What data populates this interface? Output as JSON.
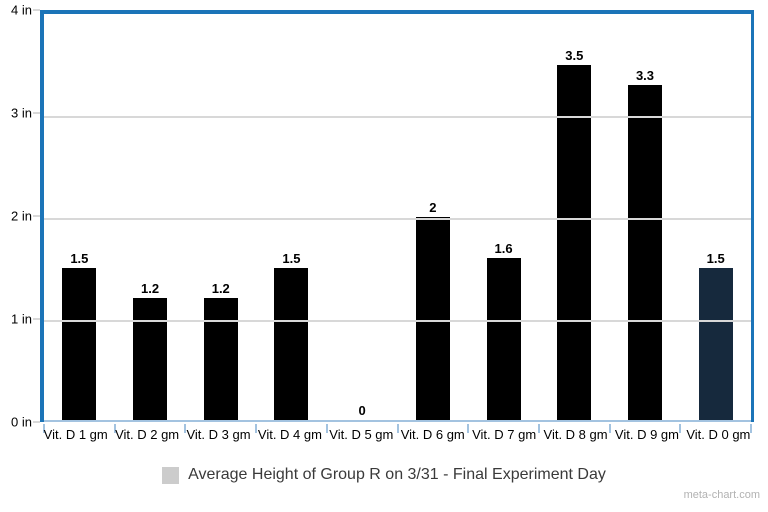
{
  "chart_data": {
    "type": "bar",
    "categories": [
      "Vit. D 1 gm",
      "Vit. D 2 gm",
      "Vit. D 3 gm",
      "Vit. D 4 gm",
      "Vit. D 5 gm",
      "Vit. D 6 gm",
      "Vit. D 7 gm",
      "Vit. D 8 gm",
      "Vit. D 9 gm",
      "Vit. D 0 gm"
    ],
    "values": [
      1.5,
      1.2,
      1.2,
      1.5,
      0,
      2,
      1.6,
      3.5,
      3.3,
      1.5
    ],
    "value_labels": [
      "1.5",
      "1.2",
      "1.2",
      "1.5",
      "0",
      "2",
      "1.6",
      "3.5",
      "3.3",
      "1.5"
    ],
    "bar_colors": [
      "#000000",
      "#000000",
      "#000000",
      "#000000",
      "#000000",
      "#000000",
      "#000000",
      "#000000",
      "#000000",
      "#16293d"
    ],
    "y_tick_labels": [
      "4 in",
      "3 in",
      "2 in",
      "1 in",
      "0 in"
    ],
    "ylim": [
      0,
      4
    ],
    "gridline_values": [
      3,
      2,
      1
    ],
    "grid": true,
    "legend": "Average Height of Group R on 3/31 - Final Experiment Day",
    "legend_position": "bottom-center",
    "title": "",
    "xlabel": "",
    "ylabel": ""
  },
  "colors": {
    "axis_blue": "#1b74b8",
    "baseline_light_blue": "#a3c3e0",
    "gridline_gray": "#d8d8d8",
    "legend_swatch_gray": "#cccccc",
    "bar_black": "#000000",
    "bar_navy": "#16293d"
  },
  "watermark": "meta-chart.com"
}
